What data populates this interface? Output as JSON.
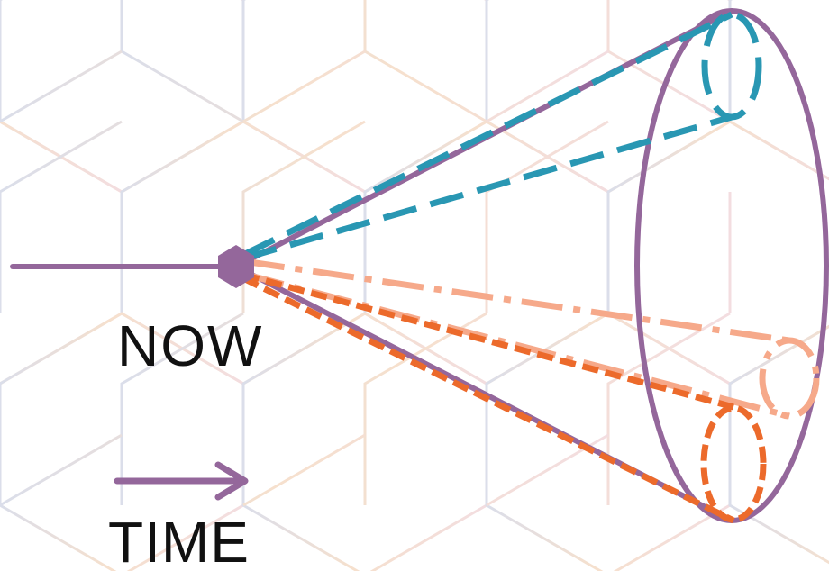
{
  "labels": {
    "now": "NOW",
    "time": "TIME"
  },
  "colors": {
    "cone": "#94679b",
    "upper_future": "#2997b3",
    "middle_future": "#f6a98a",
    "lower_future": "#ec6a2b",
    "background_grid_cool": "#cfd3e3",
    "background_grid_warm": "#f3d6bd"
  },
  "icons": {
    "present_marker": "hexagon-icon",
    "time_direction": "arrow-right-icon"
  }
}
